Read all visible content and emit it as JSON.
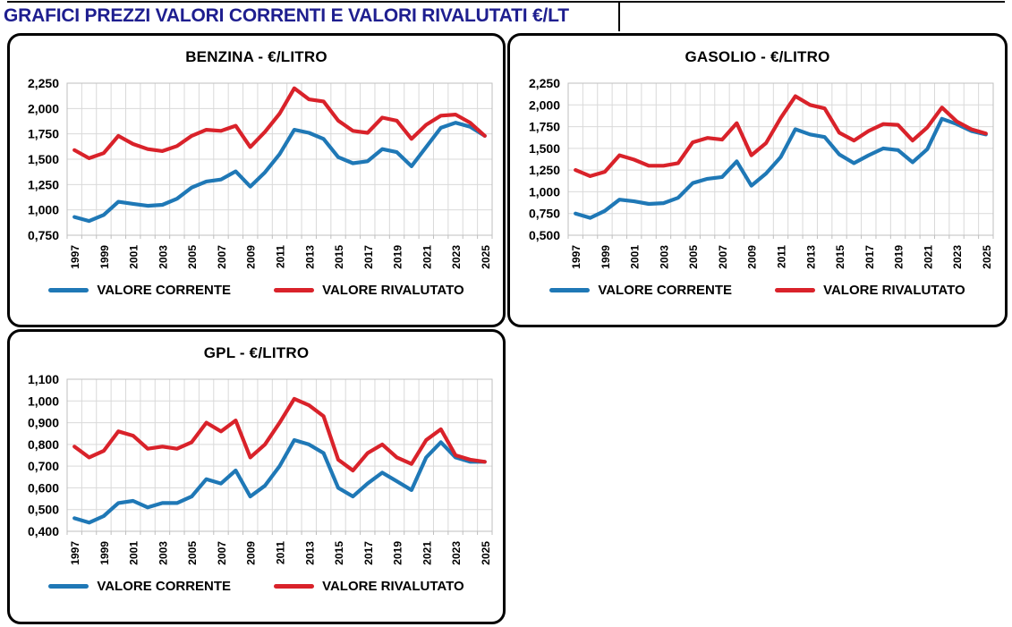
{
  "page": {
    "title": "GRAFICI PREZZI VALORI CORRENTI E VALORI RIVALUTATI €/LT",
    "title_color": "#1e1e8f"
  },
  "legend": {
    "corrente": "VALORE CORRENTE",
    "rivalutato": "VALORE RIVALUTATO"
  },
  "colors": {
    "corrente": "#1f78b6",
    "rivalutato": "#d9222a",
    "grid": "#d9d9d9",
    "axis": "#bfbfbf"
  },
  "chart_data": [
    {
      "type": "line",
      "title": "BENZINA - €/LITRO",
      "categories": [
        1997,
        1998,
        1999,
        2000,
        2001,
        2002,
        2003,
        2004,
        2005,
        2006,
        2007,
        2008,
        2009,
        2010,
        2011,
        2012,
        2013,
        2014,
        2015,
        2016,
        2017,
        2018,
        2019,
        2020,
        2021,
        2022,
        2023,
        2024,
        2025
      ],
      "xtick_labels": [
        1997,
        1999,
        2001,
        2003,
        2005,
        2007,
        2009,
        2011,
        2013,
        2015,
        2017,
        2019,
        2021,
        2023,
        2025
      ],
      "ylim": [
        0.75,
        2.25
      ],
      "ystep": 0.25,
      "ytick_labels": [
        "2,250",
        "2,000",
        "1,750",
        "1,500",
        "1,250",
        "1,000",
        "0,750"
      ],
      "grid": true,
      "legend_position": "bottom",
      "series": [
        {
          "name": "VALORE CORRENTE",
          "color": "#1f78b6",
          "values": [
            0.93,
            0.89,
            0.95,
            1.08,
            1.06,
            1.04,
            1.05,
            1.11,
            1.22,
            1.28,
            1.3,
            1.38,
            1.23,
            1.37,
            1.55,
            1.79,
            1.76,
            1.7,
            1.52,
            1.46,
            1.48,
            1.6,
            1.57,
            1.43,
            1.62,
            1.81,
            1.86,
            1.82,
            1.73
          ]
        },
        {
          "name": "VALORE RIVALUTATO",
          "color": "#d9222a",
          "values": [
            1.59,
            1.51,
            1.56,
            1.73,
            1.65,
            1.6,
            1.58,
            1.63,
            1.73,
            1.79,
            1.78,
            1.83,
            1.62,
            1.77,
            1.95,
            2.2,
            2.09,
            2.07,
            1.88,
            1.78,
            1.76,
            1.91,
            1.88,
            1.7,
            1.84,
            1.93,
            1.94,
            1.86,
            1.73
          ]
        }
      ]
    },
    {
      "type": "line",
      "title": "GASOLIO - €/LITRO",
      "categories": [
        1997,
        1998,
        1999,
        2000,
        2001,
        2002,
        2003,
        2004,
        2005,
        2006,
        2007,
        2008,
        2009,
        2010,
        2011,
        2012,
        2013,
        2014,
        2015,
        2016,
        2017,
        2018,
        2019,
        2020,
        2021,
        2022,
        2023,
        2024,
        2025
      ],
      "xtick_labels": [
        1997,
        1999,
        2001,
        2003,
        2005,
        2007,
        2009,
        2011,
        2013,
        2015,
        2017,
        2019,
        2021,
        2023,
        2025
      ],
      "ylim": [
        0.5,
        2.25
      ],
      "ystep": 0.25,
      "ytick_labels": [
        "2,250",
        "2,000",
        "1,750",
        "1,500",
        "1,250",
        "1,000",
        "0,750",
        "0,500"
      ],
      "grid": true,
      "legend_position": "bottom",
      "series": [
        {
          "name": "VALORE CORRENTE",
          "color": "#1f78b6",
          "values": [
            0.75,
            0.7,
            0.78,
            0.91,
            0.89,
            0.86,
            0.87,
            0.93,
            1.1,
            1.15,
            1.17,
            1.35,
            1.07,
            1.21,
            1.4,
            1.72,
            1.66,
            1.63,
            1.43,
            1.33,
            1.42,
            1.5,
            1.48,
            1.34,
            1.49,
            1.84,
            1.78,
            1.7,
            1.66
          ]
        },
        {
          "name": "VALORE RIVALUTATO",
          "color": "#d9222a",
          "values": [
            1.25,
            1.18,
            1.23,
            1.42,
            1.37,
            1.3,
            1.3,
            1.33,
            1.57,
            1.62,
            1.6,
            1.79,
            1.42,
            1.56,
            1.85,
            2.1,
            2.0,
            1.96,
            1.68,
            1.59,
            1.7,
            1.78,
            1.77,
            1.59,
            1.74,
            1.97,
            1.81,
            1.72,
            1.67
          ]
        }
      ]
    },
    {
      "type": "line",
      "title": "GPL - €/LITRO",
      "categories": [
        1997,
        1998,
        1999,
        2000,
        2001,
        2002,
        2003,
        2004,
        2005,
        2006,
        2007,
        2008,
        2009,
        2010,
        2011,
        2012,
        2013,
        2014,
        2015,
        2016,
        2017,
        2018,
        2019,
        2020,
        2021,
        2022,
        2023,
        2024,
        2025
      ],
      "xtick_labels": [
        1997,
        1999,
        2001,
        2003,
        2005,
        2007,
        2009,
        2011,
        2013,
        2015,
        2017,
        2019,
        2021,
        2023,
        2025
      ],
      "ylim": [
        0.4,
        1.1
      ],
      "ystep": 0.1,
      "ytick_labels": [
        "1,100",
        "1,000",
        "0,900",
        "0,800",
        "0,700",
        "0,600",
        "0,500",
        "0,400"
      ],
      "grid": true,
      "legend_position": "bottom",
      "series": [
        {
          "name": "VALORE CORRENTE",
          "color": "#1f78b6",
          "values": [
            0.46,
            0.44,
            0.47,
            0.53,
            0.54,
            0.51,
            0.53,
            0.53,
            0.56,
            0.64,
            0.62,
            0.68,
            0.56,
            0.61,
            0.7,
            0.82,
            0.8,
            0.76,
            0.6,
            0.56,
            0.62,
            0.67,
            0.63,
            0.59,
            0.74,
            0.81,
            0.74,
            0.72,
            0.72
          ]
        },
        {
          "name": "VALORE RIVALUTATO",
          "color": "#d9222a",
          "values": [
            0.79,
            0.74,
            0.77,
            0.86,
            0.84,
            0.78,
            0.79,
            0.78,
            0.81,
            0.9,
            0.86,
            0.91,
            0.74,
            0.8,
            0.9,
            1.01,
            0.98,
            0.93,
            0.73,
            0.68,
            0.76,
            0.8,
            0.74,
            0.71,
            0.82,
            0.87,
            0.75,
            0.73,
            0.72
          ]
        }
      ]
    }
  ]
}
